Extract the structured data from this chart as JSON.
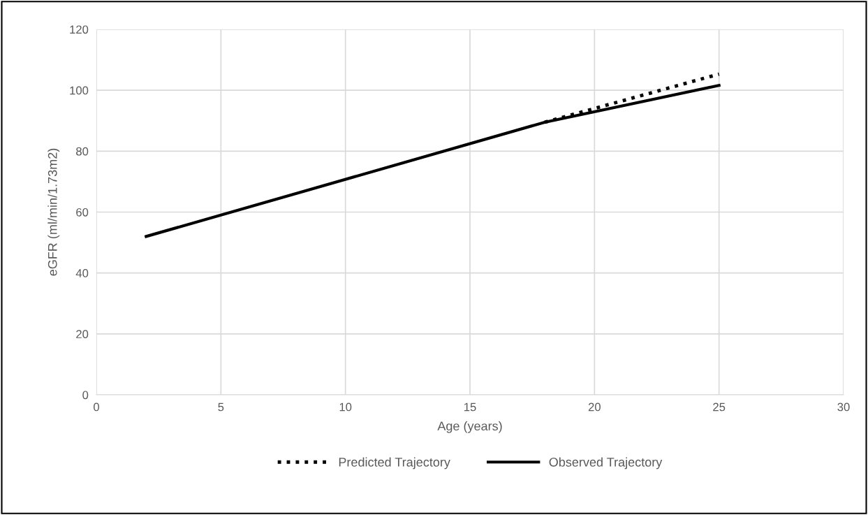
{
  "chart_data": {
    "type": "line",
    "xlabel": "Age (years)",
    "ylabel": "eGFR (ml/min/1.73m2)",
    "xlim": [
      0,
      30
    ],
    "xticks": [
      0,
      5,
      10,
      15,
      20,
      25,
      30
    ],
    "ylim": [
      0,
      120
    ],
    "yticks": [
      0,
      20,
      40,
      60,
      80,
      100,
      120
    ],
    "grid": true,
    "legend": "bottom",
    "marker": "none",
    "series": [
      {
        "name": "Predicted Trajectory",
        "color": "#000000",
        "line_style": "dotted",
        "x": [
          18,
          25
        ],
        "values": [
          89.5,
          105.3
        ]
      },
      {
        "name": "Observed Trajectory",
        "color": "#000000",
        "line_style": "solid",
        "x": [
          2,
          18,
          25
        ],
        "values": [
          52,
          89.5,
          101.6
        ]
      }
    ]
  }
}
